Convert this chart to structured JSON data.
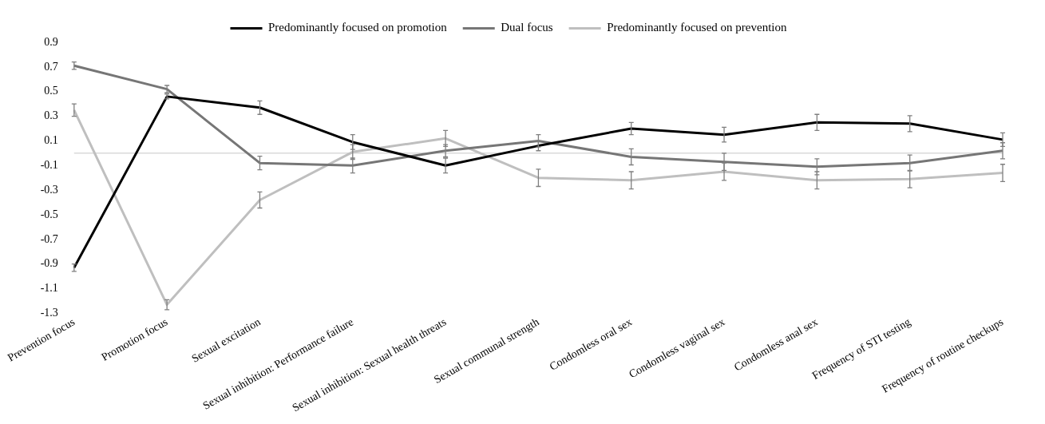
{
  "chart_data": {
    "type": "line",
    "categories": [
      "Prevention focus",
      "Promotion focus",
      "Sexual excitation",
      "Sexual inhibition: Performance failure",
      "Sexual inhibition: Sexual health threats",
      "Sexual communal strength",
      "Condomless oral sex",
      "Condomless vaginal sex",
      "Condomless anal sex",
      "Frequency of STI testing",
      "Frequency of routine checkups"
    ],
    "series": [
      {
        "name": "Predominantly focused on promotion",
        "color": "#000000",
        "values": [
          -0.93,
          0.46,
          0.37,
          0.09,
          -0.1,
          0.06,
          0.2,
          0.15,
          0.25,
          0.24,
          0.11
        ],
        "errors": [
          0.03,
          0.02,
          0.055,
          0.06,
          0.06,
          0.04,
          0.05,
          0.06,
          0.065,
          0.065,
          0.055
        ]
      },
      {
        "name": "Dual focus",
        "color": "#767676",
        "values": [
          0.71,
          0.52,
          -0.08,
          -0.1,
          0.02,
          0.1,
          -0.03,
          -0.07,
          -0.11,
          -0.08,
          0.02
        ],
        "errors": [
          0.03,
          0.03,
          0.055,
          0.06,
          0.05,
          0.05,
          0.065,
          0.07,
          0.065,
          0.065,
          0.065
        ]
      },
      {
        "name": "Predominantly focused on prevention",
        "color": "#bfbfbf",
        "values": [
          0.35,
          -1.23,
          -0.38,
          0.01,
          0.12,
          -0.2,
          -0.22,
          -0.15,
          -0.22,
          -0.21,
          -0.16
        ],
        "errors": [
          0.05,
          0.04,
          0.065,
          0.06,
          0.065,
          0.07,
          0.07,
          0.07,
          0.07,
          0.07,
          0.07
        ]
      }
    ],
    "ylim": [
      -1.3,
      0.9
    ],
    "yticks": [
      -1.3,
      -1.1,
      -0.9,
      -0.7,
      -0.5,
      -0.3,
      -0.1,
      0.1,
      0.3,
      0.5,
      0.7,
      0.9
    ],
    "grid": false,
    "legend": "top",
    "marker": "none",
    "line_style": "solid"
  }
}
